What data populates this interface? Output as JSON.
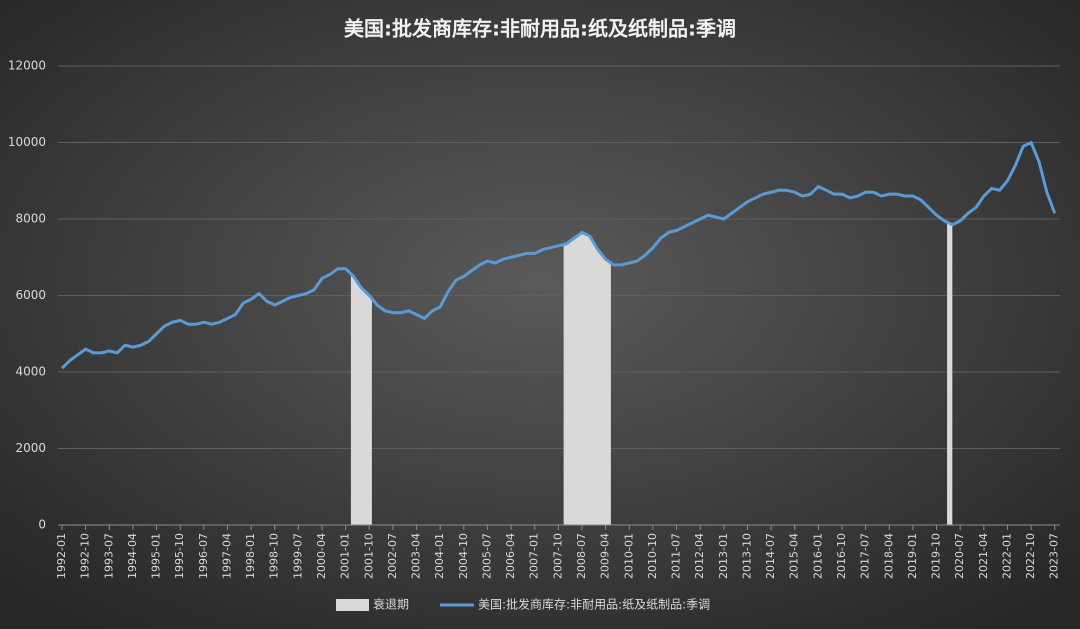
{
  "chart_data": {
    "type": "line",
    "title": "美国:批发商库存:非耐用品:纸及纸制品:季调",
    "x": [
      "1992-01",
      "1992-04",
      "1992-07",
      "1992-10",
      "1993-01",
      "1993-04",
      "1993-07",
      "1993-10",
      "1994-01",
      "1994-04",
      "1994-07",
      "1994-10",
      "1995-01",
      "1995-04",
      "1995-07",
      "1995-10",
      "1996-01",
      "1996-04",
      "1996-07",
      "1996-10",
      "1997-01",
      "1997-04",
      "1997-07",
      "1997-10",
      "1998-01",
      "1998-04",
      "1998-07",
      "1998-10",
      "1999-01",
      "1999-04",
      "1999-07",
      "1999-10",
      "2000-01",
      "2000-04",
      "2000-07",
      "2000-10",
      "2001-01",
      "2001-04",
      "2001-07",
      "2001-10",
      "2002-01",
      "2002-04",
      "2002-07",
      "2002-10",
      "2003-01",
      "2003-04",
      "2003-07",
      "2003-10",
      "2004-01",
      "2004-04",
      "2004-07",
      "2004-10",
      "2005-01",
      "2005-04",
      "2005-07",
      "2005-10",
      "2006-01",
      "2006-04",
      "2006-07",
      "2006-10",
      "2007-01",
      "2007-04",
      "2007-07",
      "2007-10",
      "2008-01",
      "2008-04",
      "2008-07",
      "2008-10",
      "2009-01",
      "2009-04",
      "2009-07",
      "2009-10",
      "2010-01",
      "2010-04",
      "2010-07",
      "2010-10",
      "2011-01",
      "2011-04",
      "2011-07",
      "2011-10",
      "2012-01",
      "2012-04",
      "2012-07",
      "2012-10",
      "2013-01",
      "2013-04",
      "2013-07",
      "2013-10",
      "2014-01",
      "2014-04",
      "2014-07",
      "2014-10",
      "2015-01",
      "2015-04",
      "2015-07",
      "2015-10",
      "2016-01",
      "2016-04",
      "2016-07",
      "2016-10",
      "2017-01",
      "2017-04",
      "2017-07",
      "2017-10",
      "2018-01",
      "2018-04",
      "2018-07",
      "2018-10",
      "2019-01",
      "2019-04",
      "2019-07",
      "2019-10",
      "2020-01",
      "2020-04",
      "2020-07",
      "2020-10",
      "2021-01",
      "2021-04",
      "2021-07",
      "2021-10",
      "2022-01",
      "2022-04",
      "2022-07",
      "2022-10",
      "2023-01",
      "2023-04",
      "2023-07"
    ],
    "series": [
      {
        "name": "美国:批发商库存:非耐用品:纸及纸制品:季调",
        "color": "#5b9bd5",
        "values": [
          4100,
          4300,
          4450,
          4600,
          4500,
          4500,
          4550,
          4500,
          4700,
          4650,
          4700,
          4800,
          5000,
          5200,
          5300,
          5350,
          5250,
          5250,
          5300,
          5250,
          5300,
          5400,
          5500,
          5800,
          5900,
          6050,
          5850,
          5750,
          5850,
          5950,
          6000,
          6050,
          6150,
          6450,
          6550,
          6700,
          6700,
          6500,
          6200,
          6000,
          5750,
          5600,
          5550,
          5550,
          5600,
          5500,
          5400,
          5600,
          5700,
          6100,
          6400,
          6500,
          6650,
          6800,
          6900,
          6850,
          6950,
          7000,
          7050,
          7100,
          7100,
          7200,
          7250,
          7300,
          7350,
          7500,
          7650,
          7550,
          7200,
          6950,
          6800,
          6800,
          6850,
          6900,
          7050,
          7250,
          7500,
          7650,
          7700,
          7800,
          7900,
          8000,
          8100,
          8050,
          8000,
          8150,
          8300,
          8450,
          8550,
          8650,
          8700,
          8750,
          8750,
          8700,
          8600,
          8650,
          8850,
          8750,
          8650,
          8650,
          8550,
          8600,
          8700,
          8700,
          8600,
          8650,
          8650,
          8600,
          8600,
          8500,
          8300,
          8100,
          7950,
          7850,
          7950,
          8150,
          8300,
          8600,
          8800,
          8750,
          9000,
          9400,
          9900,
          10000,
          9500,
          8700,
          8150
        ]
      }
    ],
    "recessions": {
      "name": "衰退期",
      "color": "#d9d9d9",
      "periods": [
        {
          "start": "2001-03",
          "end": "2001-11"
        },
        {
          "start": "2007-12",
          "end": "2009-06"
        },
        {
          "start": "2020-02",
          "end": "2020-04"
        }
      ]
    },
    "xlim": [
      "1992-01",
      "2023-09"
    ],
    "xticks": [
      "1992-01",
      "1992-10",
      "1993-07",
      "1994-04",
      "1995-01",
      "1995-10",
      "1996-07",
      "1997-04",
      "1998-01",
      "1998-10",
      "1999-07",
      "2000-04",
      "2001-01",
      "2001-10",
      "2002-07",
      "2003-04",
      "2004-01",
      "2004-10",
      "2005-07",
      "2006-04",
      "2007-01",
      "2007-10",
      "2008-07",
      "2009-04",
      "2010-01",
      "2010-10",
      "2011-07",
      "2012-04",
      "2013-01",
      "2013-10",
      "2014-07",
      "2015-04",
      "2016-01",
      "2016-10",
      "2017-07",
      "2018-04",
      "2019-01",
      "2019-10",
      "2020-07",
      "2021-04",
      "2022-01",
      "2022-10",
      "2023-07"
    ],
    "ylim": [
      0,
      12000
    ],
    "yticks": [
      0,
      2000,
      4000,
      6000,
      8000,
      10000,
      12000
    ],
    "grid": true,
    "legend": "bottom"
  }
}
